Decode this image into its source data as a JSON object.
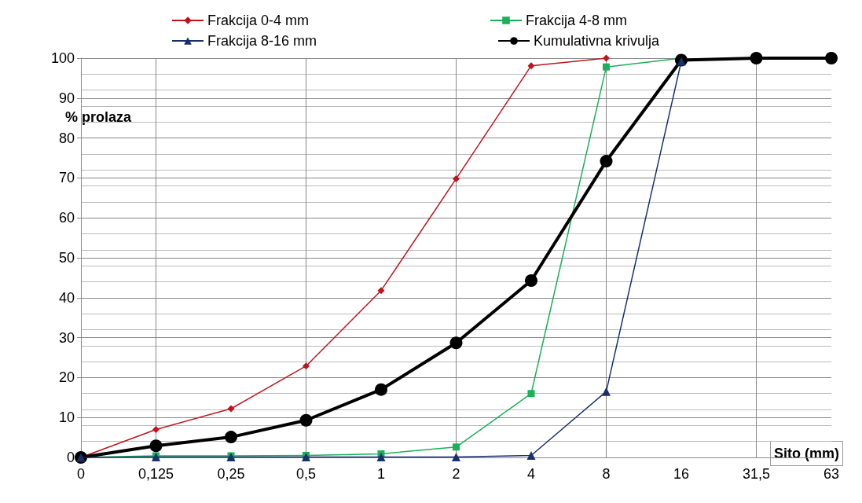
{
  "chart_data": {
    "type": "line",
    "xlabel": "Sito (mm)",
    "ylabel": "% prolaza",
    "categories": [
      "0",
      "0,125",
      "0,25",
      "0,5",
      "1",
      "2",
      "4",
      "8",
      "16",
      "31,5",
      "63"
    ],
    "series": [
      {
        "name": "Frakcija 0-4 mm",
        "color": "#c0141c",
        "marker": "diamond",
        "values": [
          0,
          7,
          12.2,
          22.9,
          41.8,
          69.8,
          98.1,
          100,
          null,
          null,
          null
        ]
      },
      {
        "name": "Frakcija 4-8 mm",
        "color": "#1bb05a",
        "marker": "square",
        "values": [
          0,
          0.4,
          0.4,
          0.5,
          0.9,
          2.6,
          16,
          97.8,
          100,
          null,
          null
        ]
      },
      {
        "name": "Frakcija 8-16 mm",
        "color": "#1a2f6e",
        "marker": "triangle",
        "values": [
          0,
          0.1,
          0.1,
          0.1,
          0.1,
          0.1,
          0.5,
          16.5,
          99.2,
          null,
          null
        ]
      },
      {
        "name": "Kumulativna krivulja",
        "color": "#000000",
        "marker": "circle",
        "values": [
          0,
          2.9,
          5.1,
          9.3,
          17,
          28.7,
          44.3,
          74.2,
          99.5,
          100,
          100
        ]
      }
    ],
    "ylim": [
      0,
      100
    ],
    "yticks": [
      0,
      10,
      20,
      30,
      40,
      50,
      60,
      70,
      80,
      90,
      100
    ],
    "grid": true,
    "legend": "top"
  }
}
